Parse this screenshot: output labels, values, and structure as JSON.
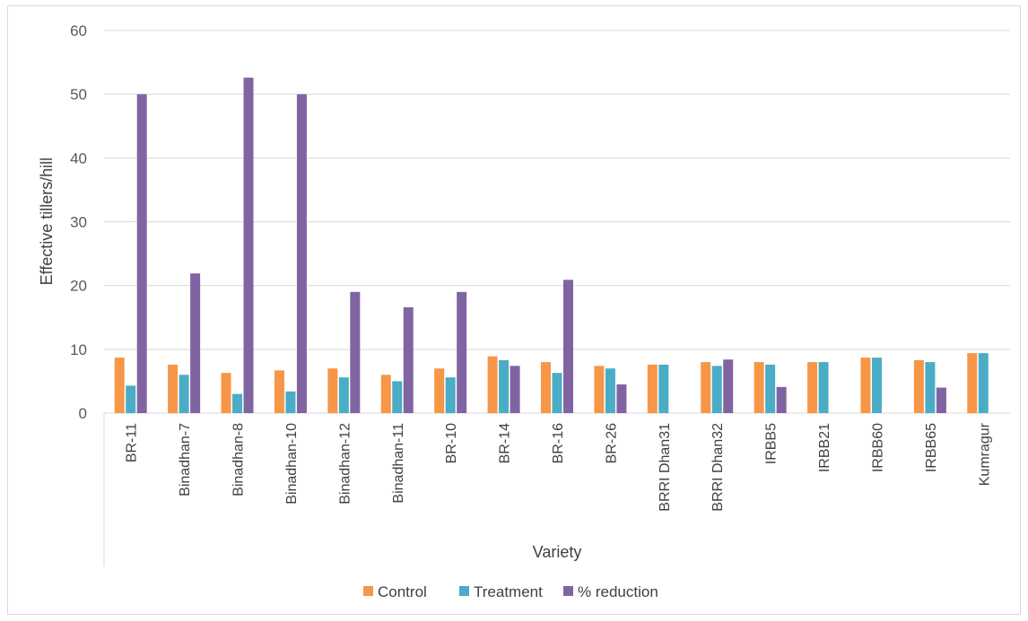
{
  "chart_data": {
    "type": "bar",
    "title": "",
    "xlabel": "Variety",
    "ylabel": "Effective tillers/hill",
    "ylim": [
      0,
      60
    ],
    "yticks": [
      0,
      10,
      20,
      30,
      40,
      50,
      60
    ],
    "grid": true,
    "legend_position": "bottom",
    "categories": [
      "BR-11",
      "Binadhan-7",
      "Binadhan-8",
      "Binadhan-10",
      "Binadhan-12",
      "Binadhan-11",
      "BR-10",
      "BR-14",
      "BR-16",
      "BR-26",
      "BRRI Dhan31",
      "BRRI Dhan32",
      "IRBB5",
      "IRBB21",
      "IRBB60",
      "IRBB65",
      "Kumragur"
    ],
    "series": [
      {
        "name": "Control",
        "color": "#f79646",
        "values": [
          8.7,
          7.6,
          6.3,
          6.7,
          7.0,
          6.0,
          7.0,
          8.9,
          8.0,
          7.4,
          7.6,
          8.0,
          8.0,
          8.0,
          8.7,
          8.3,
          9.4
        ]
      },
      {
        "name": "Treatment",
        "color": "#4bacc6",
        "values": [
          4.3,
          6.0,
          3.0,
          3.4,
          5.6,
          5.0,
          5.6,
          8.3,
          6.3,
          7.0,
          7.6,
          7.4,
          7.6,
          8.0,
          8.7,
          8.0,
          9.4
        ]
      },
      {
        "name": "% reduction",
        "color": "#8064a2",
        "values": [
          50.0,
          21.9,
          52.6,
          50.0,
          19.0,
          16.6,
          19.0,
          7.4,
          20.9,
          4.5,
          0,
          8.4,
          4.1,
          0,
          0,
          4.0,
          0
        ]
      }
    ]
  }
}
